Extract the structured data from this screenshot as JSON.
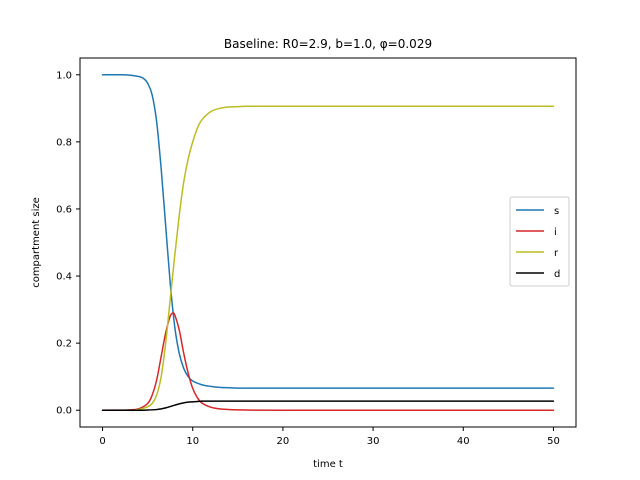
{
  "chart_data": {
    "type": "line",
    "title": "Baseline: R0=2.9, b=1.0, φ=0.029",
    "xlabel": "time t",
    "ylabel": "compartment size",
    "xlim": [
      -2.5,
      52.5
    ],
    "ylim": [
      -0.05,
      1.05
    ],
    "xticks": [
      0,
      10,
      20,
      30,
      40,
      50
    ],
    "yticks": [
      0.0,
      0.2,
      0.4,
      0.6,
      0.8,
      1.0
    ],
    "xtick_labels": [
      "0",
      "10",
      "20",
      "30",
      "40",
      "50"
    ],
    "ytick_labels": [
      "0.0",
      "0.2",
      "0.4",
      "0.6",
      "0.8",
      "1.0"
    ],
    "grid": false,
    "legend_position": "center-right",
    "series": [
      {
        "name": "s",
        "color": "#1f77b4",
        "x": [
          0,
          2,
          3,
          4,
          4.5,
          5,
          5.5,
          6,
          6.5,
          7,
          7.5,
          8,
          8.5,
          9,
          9.5,
          10,
          11,
          12,
          13,
          14,
          15,
          17,
          20,
          30,
          40,
          50
        ],
        "y": [
          1.0,
          1.0,
          0.999,
          0.995,
          0.99,
          0.975,
          0.94,
          0.86,
          0.72,
          0.55,
          0.38,
          0.25,
          0.17,
          0.125,
          0.1,
          0.087,
          0.076,
          0.071,
          0.068,
          0.067,
          0.066,
          0.066,
          0.066,
          0.066,
          0.066,
          0.066
        ]
      },
      {
        "name": "i",
        "color": "#d62728",
        "x": [
          0,
          3,
          4,
          5,
          5.5,
          6,
          6.5,
          7,
          7.5,
          7.8,
          8,
          8.5,
          9,
          9.5,
          10,
          10.5,
          11,
          12,
          13,
          14,
          16,
          20,
          30,
          40,
          50
        ],
        "y": [
          0.0,
          0.001,
          0.004,
          0.02,
          0.045,
          0.09,
          0.16,
          0.23,
          0.28,
          0.29,
          0.285,
          0.24,
          0.17,
          0.11,
          0.065,
          0.038,
          0.022,
          0.009,
          0.004,
          0.002,
          0.0005,
          0.0,
          0.0,
          0.0,
          0.0
        ]
      },
      {
        "name": "r",
        "color": "#bcbd22",
        "x": [
          0,
          3,
          4,
          5,
          5.5,
          6,
          6.5,
          7,
          7.5,
          8,
          8.5,
          9,
          9.5,
          10,
          10.5,
          11,
          12,
          13,
          14,
          15,
          16,
          18,
          20,
          30,
          40,
          50
        ],
        "y": [
          0.0,
          0.0,
          0.002,
          0.01,
          0.02,
          0.045,
          0.1,
          0.2,
          0.33,
          0.46,
          0.58,
          0.68,
          0.75,
          0.8,
          0.84,
          0.865,
          0.89,
          0.9,
          0.904,
          0.905,
          0.906,
          0.906,
          0.906,
          0.906,
          0.906,
          0.906
        ]
      },
      {
        "name": "d",
        "color": "#000000",
        "x": [
          0,
          4,
          5,
          6,
          6.5,
          7,
          7.5,
          8,
          8.5,
          9,
          9.5,
          10,
          10.5,
          11,
          12,
          13,
          14,
          16,
          20,
          30,
          40,
          50
        ],
        "y": [
          0.0,
          0.0,
          0.0005,
          0.002,
          0.004,
          0.007,
          0.011,
          0.015,
          0.019,
          0.022,
          0.024,
          0.025,
          0.026,
          0.027,
          0.027,
          0.027,
          0.027,
          0.027,
          0.027,
          0.027,
          0.027,
          0.027
        ]
      }
    ]
  }
}
